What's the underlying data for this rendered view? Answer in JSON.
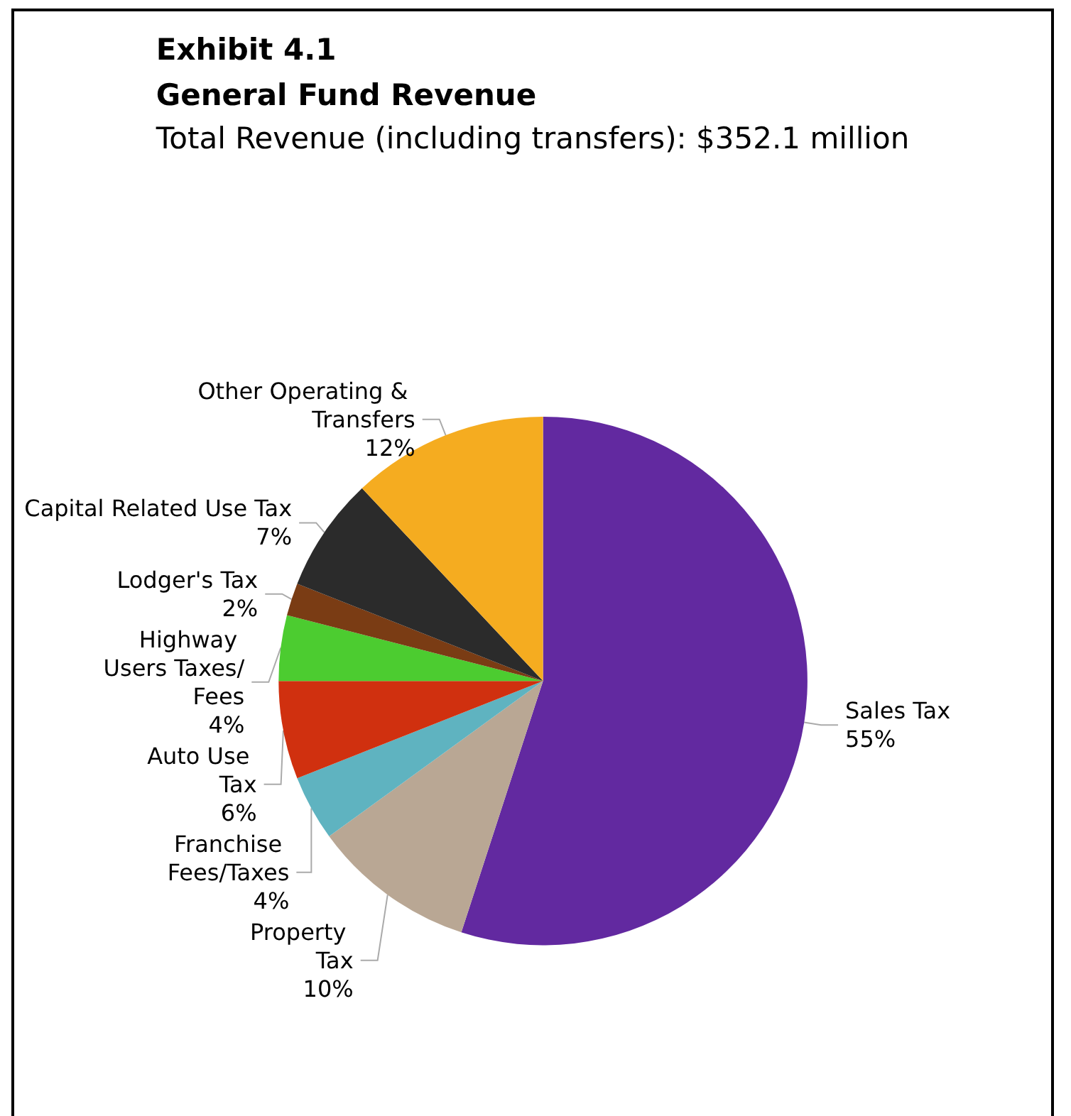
{
  "chart_data": {
    "type": "pie",
    "title": "Exhibit 4.1\nGeneral Fund Revenue",
    "subtitle": "Total Revenue (including transfers): $352.1 million",
    "categories": [
      "Sales Tax",
      "Property Tax",
      "Franchise Fees/Taxes",
      "Auto Use Tax",
      "Highway Users Taxes/Fees",
      "Lodger's Tax",
      "Capital Related Use Tax",
      "Other Operating & Transfers"
    ],
    "values": [
      55,
      10,
      4,
      6,
      4,
      2,
      7,
      12
    ],
    "value_labels": [
      "55%",
      "10%",
      "4%",
      "6%",
      "4%",
      "2%",
      "7%",
      "12%"
    ],
    "colors": [
      "#6229a0",
      "#b9a794",
      "#5fb3c0",
      "#d0300f",
      "#4ccc30",
      "#7a3c14",
      "#2b2b2b",
      "#f5ac20"
    ],
    "legend": false
  }
}
